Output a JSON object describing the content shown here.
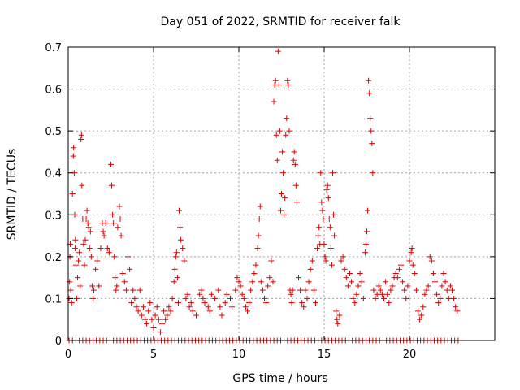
{
  "chart_data": {
    "type": "scatter",
    "title": "Day 051 of 2022, SRMTID for receiver falk",
    "xlabel": "GPS time / hours",
    "ylabel": "SRMTID / TECUs",
    "xlim": [
      0,
      25
    ],
    "ylim": [
      0,
      0.7
    ],
    "xticks": [
      "0",
      "5",
      "10",
      "15",
      "20"
    ],
    "yticks": [
      "0",
      "0.1",
      "0.2",
      "0.3",
      "0.4",
      "0.5",
      "0.6",
      "0.7"
    ],
    "grid": true,
    "marker": "+",
    "color": "#dd0000",
    "series": [
      {
        "name": "SRMTID",
        "points": [
          [
            0.05,
            0.1
          ],
          [
            0.08,
            0.14
          ],
          [
            0.1,
            0.2
          ],
          [
            0.12,
            0.23
          ],
          [
            0.15,
            0.12
          ],
          [
            0.2,
            0.09
          ],
          [
            0.25,
            0.35
          ],
          [
            0.3,
            0.44
          ],
          [
            0.32,
            0.46
          ],
          [
            0.35,
            0.4
          ],
          [
            0.38,
            0.3
          ],
          [
            0.4,
            0.22
          ],
          [
            0.42,
            0.24
          ],
          [
            0.45,
            0.18
          ],
          [
            0.5,
            0.1
          ],
          [
            0.55,
            0.15
          ],
          [
            0.6,
            0.19
          ],
          [
            0.65,
            0.21
          ],
          [
            0.7,
            0.13
          ],
          [
            0.75,
            0.48
          ],
          [
            0.78,
            0.49
          ],
          [
            0.8,
            0.37
          ],
          [
            0.85,
            0.29
          ],
          [
            0.9,
            0.23
          ],
          [
            0.95,
            0.18
          ],
          [
            1.0,
            0.24
          ],
          [
            1.05,
            0.29
          ],
          [
            1.1,
            0.31
          ],
          [
            1.15,
            0.28
          ],
          [
            1.2,
            0.27
          ],
          [
            1.25,
            0.22
          ],
          [
            1.3,
            0.26
          ],
          [
            1.35,
            0.2
          ],
          [
            1.4,
            0.13
          ],
          [
            1.45,
            0.1
          ],
          [
            1.5,
            0.12
          ],
          [
            1.6,
            0.17
          ],
          [
            1.7,
            0.19
          ],
          [
            1.8,
            0.13
          ],
          [
            1.9,
            0.22
          ],
          [
            2.0,
            0.28
          ],
          [
            2.05,
            0.26
          ],
          [
            2.1,
            0.25
          ],
          [
            2.2,
            0.28
          ],
          [
            2.3,
            0.22
          ],
          [
            2.4,
            0.21
          ],
          [
            2.5,
            0.42
          ],
          [
            2.55,
            0.37
          ],
          [
            2.6,
            0.3
          ],
          [
            2.65,
            0.28
          ],
          [
            2.7,
            0.2
          ],
          [
            2.75,
            0.15
          ],
          [
            2.8,
            0.12
          ],
          [
            2.85,
            0.13
          ],
          [
            2.9,
            0.27
          ],
          [
            3.0,
            0.32
          ],
          [
            3.05,
            0.29
          ],
          [
            3.1,
            0.25
          ],
          [
            3.2,
            0.16
          ],
          [
            3.3,
            0.14
          ],
          [
            3.4,
            0.12
          ],
          [
            3.5,
            0.2
          ],
          [
            3.6,
            0.17
          ],
          [
            3.7,
            0.09
          ],
          [
            3.8,
            0.12
          ],
          [
            3.9,
            0.1
          ],
          [
            4.0,
            0.08
          ],
          [
            4.1,
            0.07
          ],
          [
            4.2,
            0.12
          ],
          [
            4.3,
            0.06
          ],
          [
            4.4,
            0.08
          ],
          [
            4.5,
            0.05
          ],
          [
            4.6,
            0.04
          ],
          [
            4.7,
            0.07
          ],
          [
            4.8,
            0.09
          ],
          [
            4.9,
            0.05
          ],
          [
            5.0,
            0.03
          ],
          [
            5.1,
            0.06
          ],
          [
            5.2,
            0.08
          ],
          [
            5.3,
            0.05
          ],
          [
            5.4,
            0.02
          ],
          [
            5.5,
            0.04
          ],
          [
            5.6,
            0.07
          ],
          [
            5.7,
            0.05
          ],
          [
            5.8,
            0.06
          ],
          [
            5.9,
            0.08
          ],
          [
            6.0,
            0.07
          ],
          [
            6.1,
            0.1
          ],
          [
            6.2,
            0.14
          ],
          [
            6.25,
            0.17
          ],
          [
            6.3,
            0.2
          ],
          [
            6.35,
            0.21
          ],
          [
            6.4,
            0.15
          ],
          [
            6.45,
            0.09
          ],
          [
            6.5,
            0.31
          ],
          [
            6.55,
            0.27
          ],
          [
            6.6,
            0.24
          ],
          [
            6.7,
            0.22
          ],
          [
            6.8,
            0.19
          ],
          [
            6.9,
            0.1
          ],
          [
            7.0,
            0.11
          ],
          [
            7.1,
            0.08
          ],
          [
            7.2,
            0.09
          ],
          [
            7.3,
            0.07
          ],
          [
            7.5,
            0.06
          ],
          [
            7.7,
            0.11
          ],
          [
            7.8,
            0.12
          ],
          [
            7.9,
            0.1
          ],
          [
            8.0,
            0.09
          ],
          [
            8.2,
            0.08
          ],
          [
            8.3,
            0.07
          ],
          [
            8.4,
            0.11
          ],
          [
            8.6,
            0.1
          ],
          [
            8.8,
            0.12
          ],
          [
            8.9,
            0.08
          ],
          [
            9.0,
            0.06
          ],
          [
            9.2,
            0.09
          ],
          [
            9.3,
            0.11
          ],
          [
            9.5,
            0.1
          ],
          [
            9.6,
            0.08
          ],
          [
            9.8,
            0.12
          ],
          [
            9.9,
            0.15
          ],
          [
            10.0,
            0.14
          ],
          [
            10.1,
            0.13
          ],
          [
            10.2,
            0.11
          ],
          [
            10.3,
            0.1
          ],
          [
            10.4,
            0.08
          ],
          [
            10.5,
            0.07
          ],
          [
            10.6,
            0.09
          ],
          [
            10.7,
            0.12
          ],
          [
            10.8,
            0.14
          ],
          [
            10.9,
            0.16
          ],
          [
            11.0,
            0.18
          ],
          [
            11.1,
            0.22
          ],
          [
            11.15,
            0.25
          ],
          [
            11.2,
            0.29
          ],
          [
            11.25,
            0.32
          ],
          [
            11.3,
            0.14
          ],
          [
            11.4,
            0.12
          ],
          [
            11.5,
            0.1
          ],
          [
            11.6,
            0.09
          ],
          [
            11.7,
            0.13
          ],
          [
            11.8,
            0.15
          ],
          [
            11.9,
            0.19
          ],
          [
            12.0,
            0.14
          ],
          [
            12.05,
            0.57
          ],
          [
            12.1,
            0.61
          ],
          [
            12.15,
            0.62
          ],
          [
            12.2,
            0.49
          ],
          [
            12.25,
            0.43
          ],
          [
            12.3,
            0.69
          ],
          [
            12.35,
            0.61
          ],
          [
            12.4,
            0.5
          ],
          [
            12.45,
            0.31
          ],
          [
            12.5,
            0.35
          ],
          [
            12.55,
            0.45
          ],
          [
            12.6,
            0.4
          ],
          [
            12.65,
            0.3
          ],
          [
            12.7,
            0.34
          ],
          [
            12.75,
            0.49
          ],
          [
            12.8,
            0.53
          ],
          [
            12.85,
            0.62
          ],
          [
            12.9,
            0.61
          ],
          [
            12.95,
            0.5
          ],
          [
            13.0,
            0.12
          ],
          [
            13.05,
            0.11
          ],
          [
            13.1,
            0.09
          ],
          [
            13.15,
            0.12
          ],
          [
            13.2,
            0.43
          ],
          [
            13.25,
            0.45
          ],
          [
            13.3,
            0.42
          ],
          [
            13.35,
            0.37
          ],
          [
            13.4,
            0.33
          ],
          [
            13.5,
            0.15
          ],
          [
            13.6,
            0.12
          ],
          [
            13.7,
            0.09
          ],
          [
            13.8,
            0.08
          ],
          [
            13.9,
            0.12
          ],
          [
            14.0,
            0.1
          ],
          [
            14.1,
            0.14
          ],
          [
            14.2,
            0.17
          ],
          [
            14.3,
            0.19
          ],
          [
            14.4,
            0.12
          ],
          [
            14.5,
            0.09
          ],
          [
            14.6,
            0.22
          ],
          [
            14.65,
            0.25
          ],
          [
            14.7,
            0.27
          ],
          [
            14.75,
            0.23
          ],
          [
            14.8,
            0.4
          ],
          [
            14.85,
            0.33
          ],
          [
            14.9,
            0.31
          ],
          [
            14.95,
            0.29
          ],
          [
            15.0,
            0.23
          ],
          [
            15.05,
            0.2
          ],
          [
            15.1,
            0.19
          ],
          [
            15.15,
            0.36
          ],
          [
            15.2,
            0.37
          ],
          [
            15.25,
            0.34
          ],
          [
            15.3,
            0.29
          ],
          [
            15.35,
            0.27
          ],
          [
            15.4,
            0.22
          ],
          [
            15.45,
            0.18
          ],
          [
            15.5,
            0.4
          ],
          [
            15.55,
            0.3
          ],
          [
            15.6,
            0.25
          ],
          [
            15.7,
            0.07
          ],
          [
            15.75,
            0.05
          ],
          [
            15.8,
            0.04
          ],
          [
            15.9,
            0.06
          ],
          [
            16.0,
            0.19
          ],
          [
            16.1,
            0.2
          ],
          [
            16.2,
            0.17
          ],
          [
            16.3,
            0.15
          ],
          [
            16.4,
            0.13
          ],
          [
            16.5,
            0.16
          ],
          [
            16.6,
            0.14
          ],
          [
            16.7,
            0.1
          ],
          [
            16.8,
            0.09
          ],
          [
            16.9,
            0.11
          ],
          [
            17.0,
            0.13
          ],
          [
            17.1,
            0.16
          ],
          [
            17.2,
            0.14
          ],
          [
            17.3,
            0.1
          ],
          [
            17.4,
            0.21
          ],
          [
            17.45,
            0.23
          ],
          [
            17.5,
            0.26
          ],
          [
            17.55,
            0.31
          ],
          [
            17.6,
            0.62
          ],
          [
            17.65,
            0.59
          ],
          [
            17.7,
            0.53
          ],
          [
            17.75,
            0.5
          ],
          [
            17.8,
            0.47
          ],
          [
            17.85,
            0.4
          ],
          [
            17.9,
            0.12
          ],
          [
            18.0,
            0.1
          ],
          [
            18.1,
            0.11
          ],
          [
            18.2,
            0.13
          ],
          [
            18.3,
            0.12
          ],
          [
            18.4,
            0.11
          ],
          [
            18.5,
            0.1
          ],
          [
            18.6,
            0.14
          ],
          [
            18.7,
            0.11
          ],
          [
            18.8,
            0.09
          ],
          [
            18.9,
            0.12
          ],
          [
            19.0,
            0.13
          ],
          [
            19.1,
            0.15
          ],
          [
            19.2,
            0.16
          ],
          [
            19.3,
            0.15
          ],
          [
            19.4,
            0.17
          ],
          [
            19.5,
            0.18
          ],
          [
            19.6,
            0.14
          ],
          [
            19.7,
            0.12
          ],
          [
            19.8,
            0.1
          ],
          [
            19.9,
            0.13
          ],
          [
            20.0,
            0.19
          ],
          [
            20.1,
            0.21
          ],
          [
            20.15,
            0.22
          ],
          [
            20.2,
            0.18
          ],
          [
            20.3,
            0.16
          ],
          [
            20.4,
            0.12
          ],
          [
            20.5,
            0.07
          ],
          [
            20.6,
            0.05
          ],
          [
            20.7,
            0.06
          ],
          [
            20.8,
            0.08
          ],
          [
            20.9,
            0.11
          ],
          [
            21.0,
            0.12
          ],
          [
            21.1,
            0.13
          ],
          [
            21.2,
            0.2
          ],
          [
            21.3,
            0.19
          ],
          [
            21.4,
            0.16
          ],
          [
            21.5,
            0.14
          ],
          [
            21.6,
            0.11
          ],
          [
            21.7,
            0.09
          ],
          [
            21.8,
            0.1
          ],
          [
            21.9,
            0.13
          ],
          [
            22.0,
            0.16
          ],
          [
            22.1,
            0.14
          ],
          [
            22.2,
            0.12
          ],
          [
            22.3,
            0.1
          ],
          [
            22.4,
            0.13
          ],
          [
            22.5,
            0.12
          ],
          [
            22.6,
            0.1
          ],
          [
            22.7,
            0.08
          ],
          [
            22.8,
            0.07
          ]
        ]
      }
    ],
    "zero_band_x": [
      0.05,
      22.85
    ]
  }
}
